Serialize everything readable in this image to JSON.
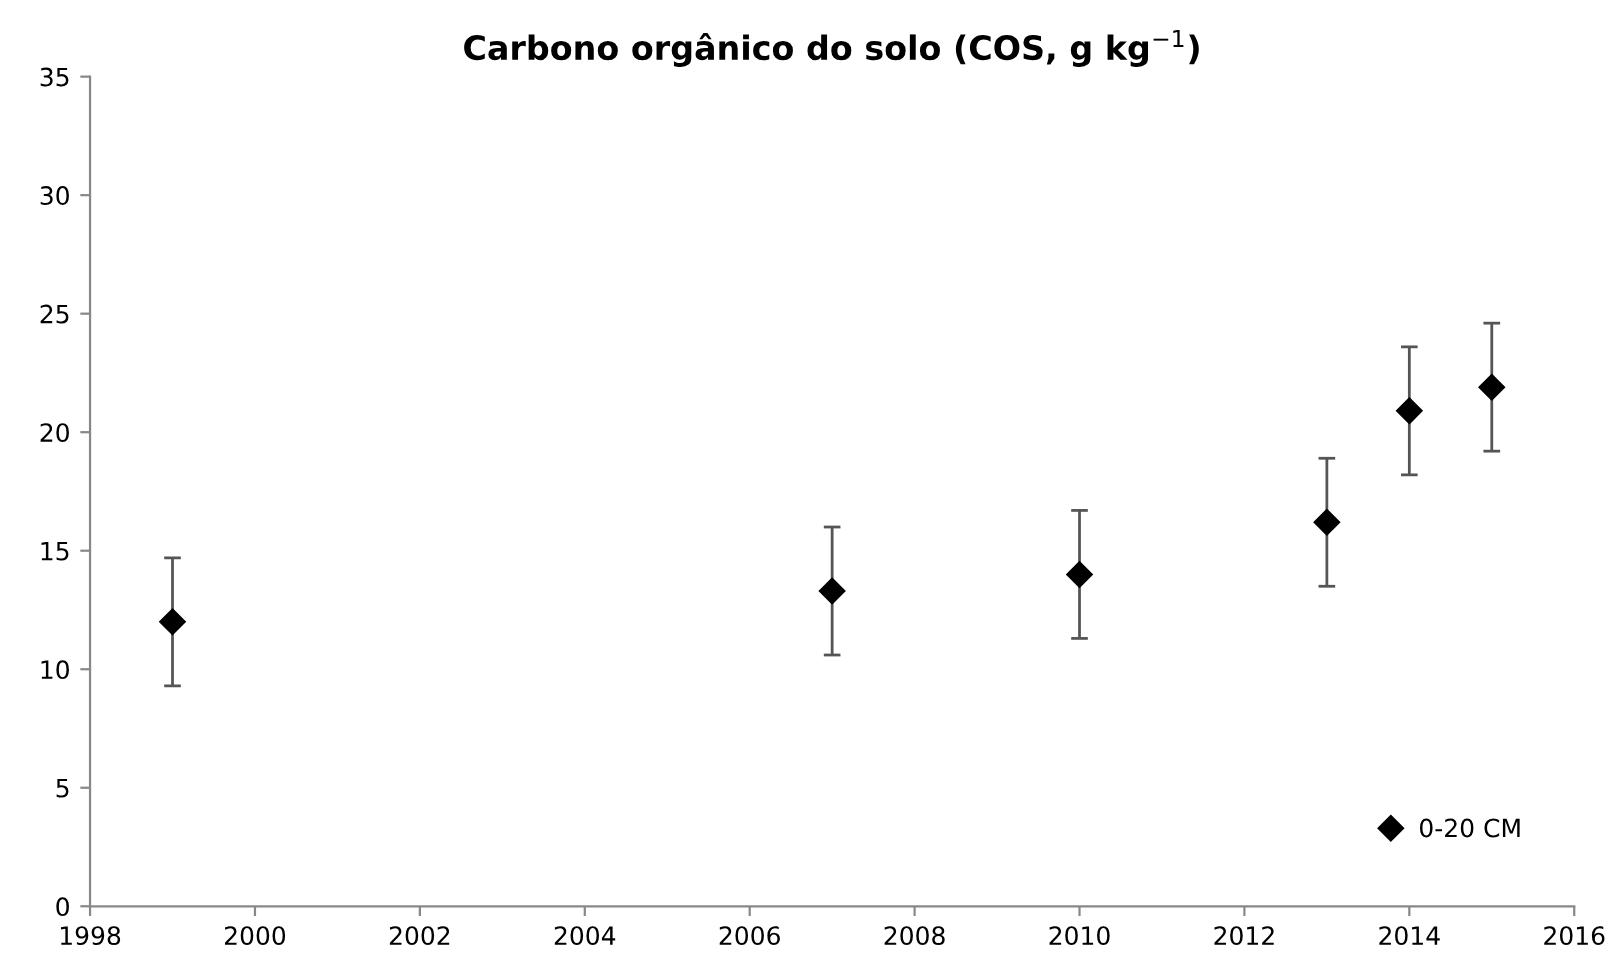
{
  "chart_data": {
    "type": "scatter",
    "title": "Carbono orgânico do solo (COS, g kg$^{−1}$)",
    "x": [
      1999,
      2007,
      2010,
      2013,
      2014,
      2015
    ],
    "series": [
      {
        "name": "0-20 CM",
        "color": "#000000",
        "values": [
          12.0,
          13.3,
          14.0,
          16.2,
          20.9,
          21.9
        ],
        "errors": [
          2.7,
          2.7,
          2.7,
          2.7,
          2.7,
          2.7
        ]
      }
    ],
    "xlim": [
      1998,
      2016
    ],
    "xticks": [
      1998,
      2000,
      2002,
      2004,
      2006,
      2008,
      2010,
      2012,
      2014,
      2016
    ],
    "ylim": [
      0,
      35
    ],
    "yticks": [
      0,
      5,
      10,
      15,
      20,
      25,
      30,
      35
    ],
    "grid": false,
    "legend": "bottom right",
    "marker": "diamond"
  }
}
